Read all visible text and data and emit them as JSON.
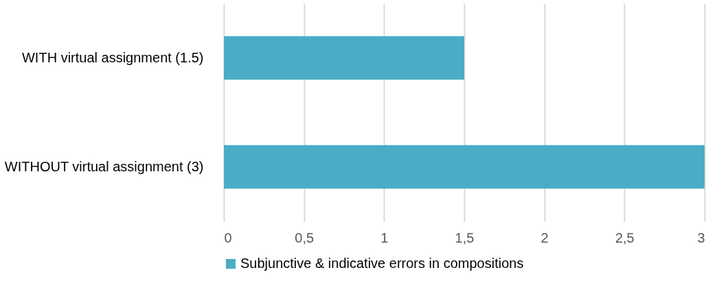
{
  "chart_data": {
    "type": "bar",
    "orientation": "horizontal",
    "categories": [
      "WITH virtual assignment (1.5)",
      "WITHOUT virtual assignment (3)"
    ],
    "series": [
      {
        "name": "Subjunctive & indicative errors in compositions",
        "color": "#4bacc6",
        "values": [
          1.5,
          3
        ]
      }
    ],
    "xlim": [
      0,
      3
    ],
    "xticks": [
      0,
      {
        "value": 0.5,
        "label": "0,5"
      },
      1,
      {
        "value": 1.5,
        "label": "1,5"
      },
      2,
      {
        "value": 2.5,
        "label": "2,5"
      },
      3
    ],
    "grid": "x",
    "legend": "bottom"
  }
}
